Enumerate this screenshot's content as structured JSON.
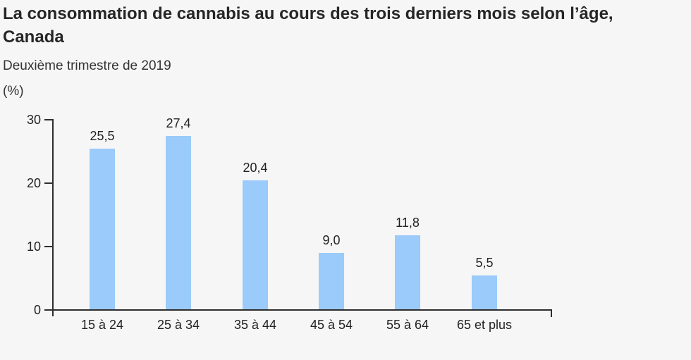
{
  "page": {
    "background": "#f6f6f6"
  },
  "chart_data": {
    "type": "bar",
    "title": "La consommation de cannabis au cours des trois derniers mois selon l’âge, Canada",
    "subtitle": "Deuxième trimestre de 2019",
    "unit_label": "(%)",
    "categories": [
      "15 à 24",
      "25 à 34",
      "35 à 44",
      "45 à 54",
      "55 à 64",
      "65 et plus"
    ],
    "values": [
      25.5,
      27.4,
      20.4,
      9.0,
      11.8,
      5.5
    ],
    "value_labels": [
      "25,5",
      "27,4",
      "20,4",
      "9,0",
      "11,8",
      "5,5"
    ],
    "xlabel": "",
    "ylabel": "(%)",
    "ylim": [
      0,
      30
    ],
    "yticks": [
      0,
      10,
      20,
      30
    ],
    "ytick_labels": [
      "0",
      "10",
      "20",
      "30"
    ],
    "grid": false,
    "legend": false,
    "bar_color": "#9acbfa",
    "axis_color": "#2e2e2e",
    "text_color": "#222222",
    "background_color": "#f6f6f6"
  }
}
